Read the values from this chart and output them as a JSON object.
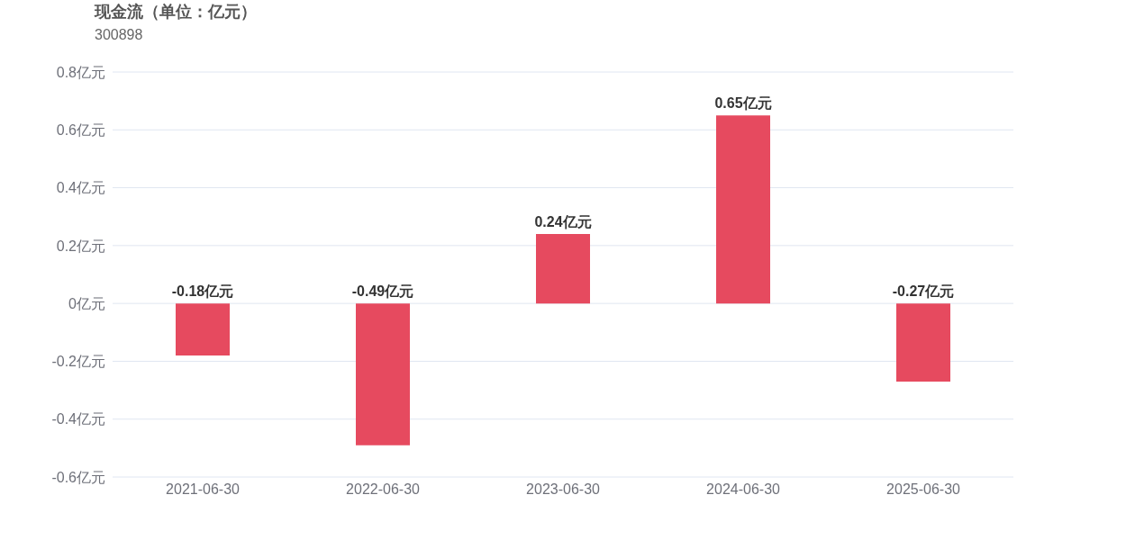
{
  "chart_data": {
    "type": "bar",
    "title": "现金流（单位：亿元）",
    "subtitle": "300898",
    "categories": [
      "2021-06-30",
      "2022-06-30",
      "2023-06-30",
      "2024-06-30",
      "2025-06-30"
    ],
    "values": [
      -0.18,
      -0.49,
      0.24,
      0.65,
      -0.27
    ],
    "value_labels": [
      "-0.18亿元",
      "-0.49亿元",
      "0.24亿元",
      "0.65亿元",
      "-0.27亿元"
    ],
    "color": "#e64a5f",
    "ylim": [
      -0.6,
      0.8
    ],
    "yticks": [
      {
        "value": -0.6,
        "label": "-0.6亿元"
      },
      {
        "value": -0.4,
        "label": "-0.4亿元"
      },
      {
        "value": -0.2,
        "label": "-0.2亿元"
      },
      {
        "value": 0,
        "label": "0亿元"
      },
      {
        "value": 0.2,
        "label": "0.2亿元"
      },
      {
        "value": 0.4,
        "label": "0.4亿元"
      },
      {
        "value": 0.6,
        "label": "0.6亿元"
      },
      {
        "value": 0.8,
        "label": "0.8亿元"
      }
    ],
    "grid": "y"
  }
}
